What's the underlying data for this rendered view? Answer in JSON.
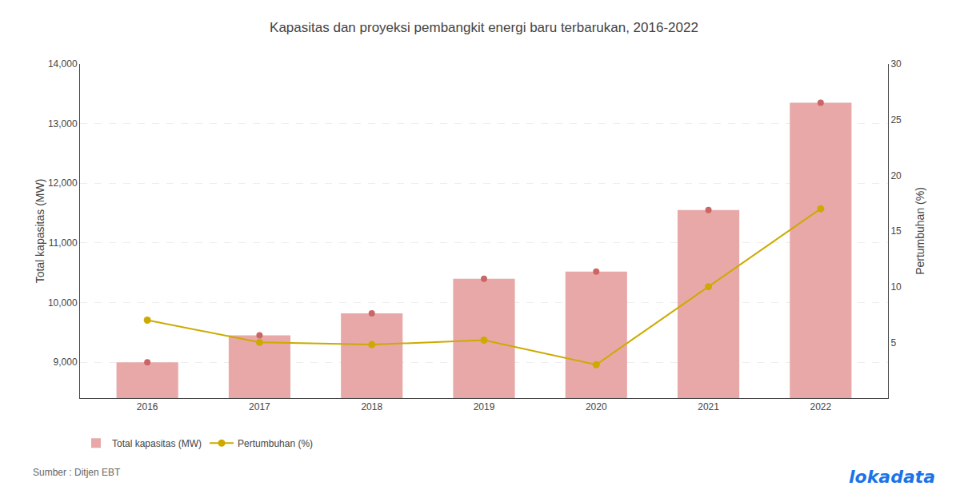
{
  "chart_data": {
    "type": "bar",
    "title": "Kapasitas dan proyeksi pembangkit energi baru terbarukan, 2016-2022",
    "x": [
      2016,
      2017,
      2018,
      2019,
      2020,
      2021,
      2022
    ],
    "xlim": [
      2015.4,
      2022.6
    ],
    "xticks": [
      2016,
      2017,
      2018,
      2019,
      2020,
      2021,
      2022
    ],
    "y_label": "Total kapasitas (MW)",
    "y2_label": "Pertumbuhan (%)",
    "ylim": [
      8400,
      14000
    ],
    "yticks": [
      {
        "value": 9000,
        "label": "9,000"
      },
      {
        "value": 10000,
        "label": "10,000"
      },
      {
        "value": 11000,
        "label": "11,000"
      },
      {
        "value": 12000,
        "label": "12,000"
      },
      {
        "value": 13000,
        "label": "13,000"
      },
      {
        "value": 14000,
        "label": "14,000"
      }
    ],
    "y2lim": [
      0,
      30
    ],
    "y2ticks": [
      5,
      10,
      15,
      20,
      25,
      30
    ],
    "grid": true,
    "legend": "bottom",
    "series": [
      {
        "name": "Total kapasitas (MW)",
        "type": "bar",
        "color": "#e8a8a8",
        "values": [
          9000,
          9450,
          9820,
          10400,
          10520,
          11550,
          13350
        ]
      },
      {
        "type": "scatter",
        "marker": "circle",
        "color": "#cc6666",
        "values": [
          9000,
          9450,
          9820,
          10400,
          10520,
          11550,
          13350
        ]
      },
      {
        "name": "Pertumbuhan (%)",
        "type": "line",
        "marker": "circle",
        "color": "#ccaa00",
        "axis": "y2",
        "values": [
          7.0,
          5.0,
          4.8,
          5.2,
          3.0,
          10.0,
          17.0
        ]
      }
    ],
    "annotations": [
      "Sumber : Ditjen EBT",
      "lokadata"
    ]
  }
}
